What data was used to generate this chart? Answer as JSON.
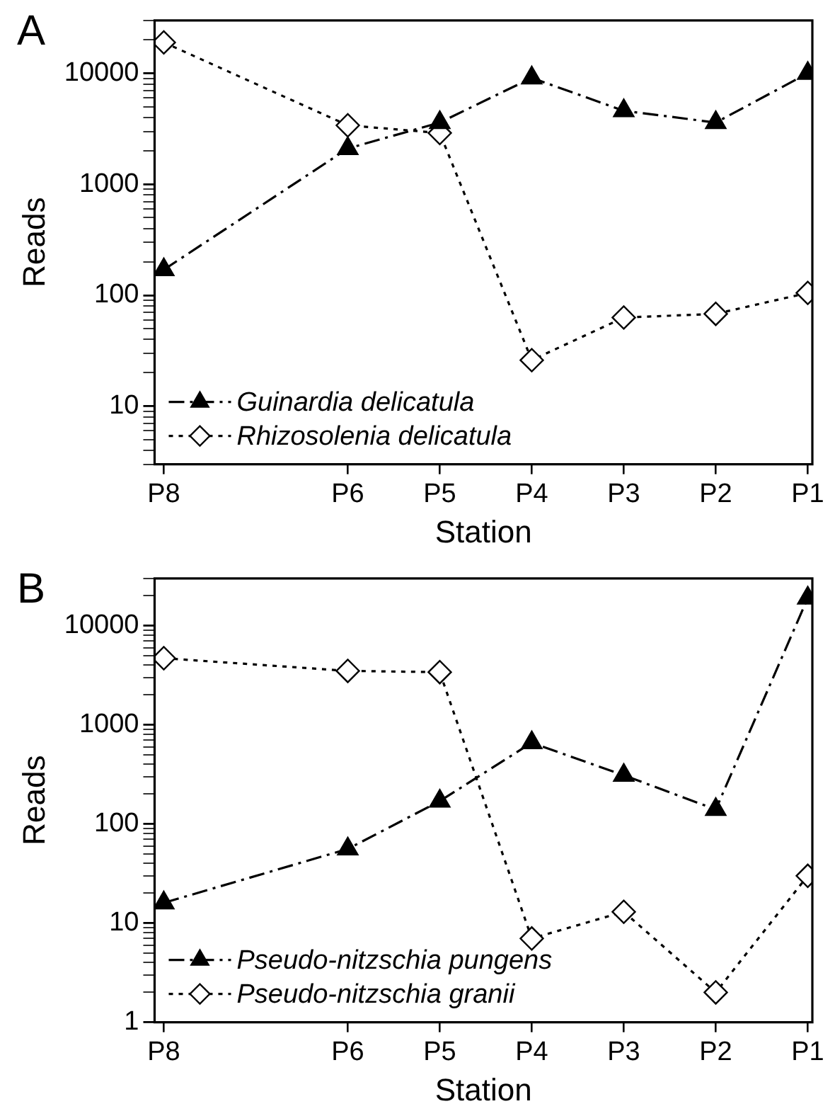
{
  "chart_data": [
    {
      "type": "line",
      "annotations": [
        "A"
      ],
      "xlabel": "Station",
      "ylabel": "Reads",
      "log": true,
      "legend": "bottom left",
      "categories": [
        "P8",
        null,
        "P6",
        "P5",
        "P4",
        "P3",
        "P2",
        "P1"
      ],
      "ylim": [
        3,
        30000
      ],
      "yticks": [
        {
          "value": 3,
          "label": null
        },
        {
          "value": 4,
          "label": null
        },
        {
          "value": 5,
          "label": null
        },
        {
          "value": 6,
          "label": null
        },
        {
          "value": 7,
          "label": null
        },
        {
          "value": 8,
          "label": null
        },
        {
          "value": 9,
          "label": null
        },
        10,
        {
          "value": 20,
          "label": null
        },
        {
          "value": 30,
          "label": null
        },
        {
          "value": 40,
          "label": null
        },
        {
          "value": 50,
          "label": null
        },
        {
          "value": 60,
          "label": null
        },
        {
          "value": 70,
          "label": null
        },
        {
          "value": 80,
          "label": null
        },
        {
          "value": 90,
          "label": null
        },
        100,
        {
          "value": 200,
          "label": null
        },
        {
          "value": 300,
          "label": null
        },
        {
          "value": 400,
          "label": null
        },
        {
          "value": 500,
          "label": null
        },
        {
          "value": 600,
          "label": null
        },
        {
          "value": 700,
          "label": null
        },
        {
          "value": 800,
          "label": null
        },
        {
          "value": 900,
          "label": null
        },
        1000,
        {
          "value": 2000,
          "label": null
        },
        {
          "value": 3000,
          "label": null
        },
        {
          "value": 4000,
          "label": null
        },
        {
          "value": 5000,
          "label": null
        },
        {
          "value": 6000,
          "label": null
        },
        {
          "value": 7000,
          "label": null
        },
        {
          "value": 8000,
          "label": null
        },
        {
          "value": 9000,
          "label": null
        },
        10000,
        {
          "value": 20000,
          "label": null
        },
        {
          "value": 30000,
          "label": null
        }
      ],
      "series": [
        {
          "name": "Guinardia delicatula",
          "color": "#000000",
          "marker": "triangle",
          "line_style": "dashed",
          "values": [
            170,
            null,
            2100,
            3600,
            9100,
            4600,
            3600,
            10000
          ]
        },
        {
          "name": "Rhizosolenia delicatula",
          "color": "#000000",
          "marker": "diamond",
          "line_style": "dotted",
          "values": [
            19000,
            null,
            3400,
            2900,
            26,
            63,
            68,
            105
          ]
        }
      ]
    },
    {
      "type": "line",
      "annotations": [
        "B"
      ],
      "xlabel": "Station",
      "ylabel": "Reads",
      "log": true,
      "legend": "bottom left",
      "categories": [
        "P8",
        null,
        "P6",
        "P5",
        "P4",
        "P3",
        "P2",
        "P1"
      ],
      "ylim": [
        1,
        30000
      ],
      "yticks": [
        1,
        {
          "value": 2,
          "label": null
        },
        {
          "value": 3,
          "label": null
        },
        {
          "value": 4,
          "label": null
        },
        {
          "value": 5,
          "label": null
        },
        {
          "value": 6,
          "label": null
        },
        {
          "value": 7,
          "label": null
        },
        {
          "value": 8,
          "label": null
        },
        {
          "value": 9,
          "label": null
        },
        10,
        {
          "value": 20,
          "label": null
        },
        {
          "value": 30,
          "label": null
        },
        {
          "value": 40,
          "label": null
        },
        {
          "value": 50,
          "label": null
        },
        {
          "value": 60,
          "label": null
        },
        {
          "value": 70,
          "label": null
        },
        {
          "value": 80,
          "label": null
        },
        {
          "value": 90,
          "label": null
        },
        100,
        {
          "value": 200,
          "label": null
        },
        {
          "value": 300,
          "label": null
        },
        {
          "value": 400,
          "label": null
        },
        {
          "value": 500,
          "label": null
        },
        {
          "value": 600,
          "label": null
        },
        {
          "value": 700,
          "label": null
        },
        {
          "value": 800,
          "label": null
        },
        {
          "value": 900,
          "label": null
        },
        1000,
        {
          "value": 2000,
          "label": null
        },
        {
          "value": 3000,
          "label": null
        },
        {
          "value": 4000,
          "label": null
        },
        {
          "value": 5000,
          "label": null
        },
        {
          "value": 6000,
          "label": null
        },
        {
          "value": 7000,
          "label": null
        },
        {
          "value": 8000,
          "label": null
        },
        {
          "value": 9000,
          "label": null
        },
        10000,
        {
          "value": 20000,
          "label": null
        },
        {
          "value": 30000,
          "label": null
        }
      ],
      "series": [
        {
          "name": "Pseudo-nitzschia pungens",
          "color": "#000000",
          "marker": "triangle",
          "line_style": "dashed",
          "values": [
            16,
            null,
            56,
            170,
            660,
            310,
            140,
            19000
          ]
        },
        {
          "name": "Pseudo-nitzschia granii",
          "color": "#000000",
          "marker": "diamond",
          "line_style": "dotted",
          "values": [
            4700,
            null,
            3500,
            3400,
            7,
            13,
            2,
            30
          ]
        }
      ]
    }
  ]
}
